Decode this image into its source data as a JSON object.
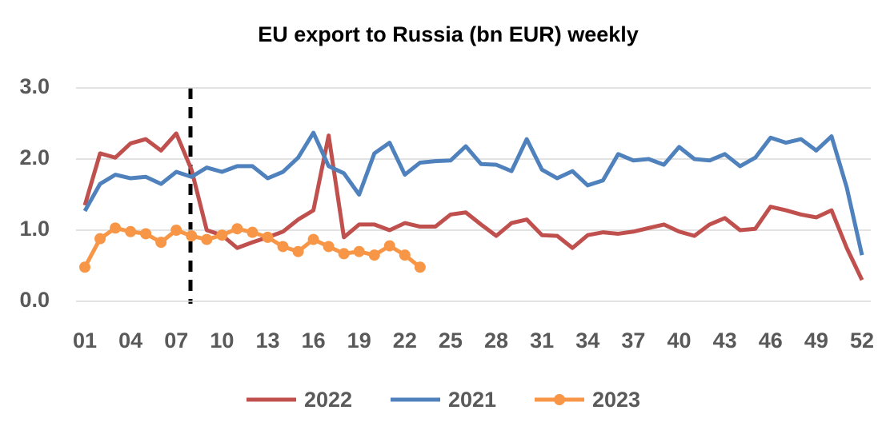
{
  "chart_data": {
    "type": "line",
    "title": "EU export to Russia (bn EUR) weekly",
    "categories": [
      "01",
      null,
      null,
      "04",
      null,
      null,
      "07",
      null,
      null,
      "10",
      null,
      null,
      "13",
      null,
      null,
      "16",
      null,
      null,
      "19",
      null,
      null,
      "22",
      null,
      null,
      "25",
      null,
      null,
      "28",
      null,
      null,
      "31",
      null,
      null,
      "34",
      null,
      null,
      "37",
      null,
      null,
      "40",
      null,
      null,
      "43",
      null,
      null,
      "46",
      null,
      null,
      "49",
      null,
      null,
      "52"
    ],
    "series": [
      {
        "name": "2022",
        "color": "#c0504d",
        "values": [
          1.35,
          2.08,
          2.02,
          2.22,
          2.28,
          2.12,
          2.36,
          1.85,
          1.0,
          0.93,
          0.75,
          0.83,
          0.9,
          0.98,
          1.15,
          1.28,
          2.33,
          0.9,
          1.08,
          1.08,
          1.0,
          1.1,
          1.05,
          1.05,
          1.22,
          1.25,
          1.08,
          0.92,
          1.1,
          1.15,
          0.93,
          0.92,
          0.75,
          0.93,
          0.97,
          0.95,
          0.98,
          1.03,
          1.08,
          0.98,
          0.92,
          1.08,
          1.17,
          1.0,
          1.02,
          1.33,
          1.28,
          1.22,
          1.18,
          1.28,
          0.75,
          0.3
        ]
      },
      {
        "name": "2021",
        "color": "#4f81bd",
        "values": [
          1.27,
          1.65,
          1.78,
          1.73,
          1.75,
          1.65,
          1.82,
          1.75,
          1.88,
          1.82,
          1.9,
          1.9,
          1.73,
          1.82,
          2.02,
          2.37,
          1.9,
          1.8,
          1.5,
          2.08,
          2.23,
          1.78,
          1.95,
          1.97,
          1.98,
          2.18,
          1.93,
          1.92,
          1.83,
          2.28,
          1.85,
          1.73,
          1.83,
          1.63,
          1.7,
          2.07,
          1.98,
          2.0,
          1.92,
          2.17,
          2.0,
          1.98,
          2.07,
          1.9,
          2.02,
          2.3,
          2.23,
          2.28,
          2.12,
          2.32,
          1.6,
          0.65
        ]
      },
      {
        "name": "2023",
        "color": "#f79646",
        "marker": "circle",
        "values": [
          0.48,
          0.88,
          1.03,
          0.98,
          0.95,
          0.83,
          1.0,
          0.92,
          0.87,
          0.93,
          1.02,
          0.97,
          0.9,
          0.77,
          0.7,
          0.87,
          0.77,
          0.67,
          0.7,
          0.65,
          0.78,
          0.65,
          0.48,
          null,
          null,
          null,
          null,
          null,
          null,
          null,
          null,
          null,
          null,
          null,
          null,
          null,
          null,
          null,
          null,
          null,
          null,
          null,
          null,
          null,
          null,
          null,
          null,
          null,
          null,
          null,
          null,
          null
        ]
      }
    ],
    "ylim": [
      0,
      3
    ],
    "yticks": [
      {
        "value": 0,
        "label": "0.0"
      },
      {
        "value": 1,
        "label": "1.0"
      },
      {
        "value": 2,
        "label": "2.0"
      },
      {
        "value": 3,
        "label": "3.0"
      }
    ],
    "grid": true,
    "legend": "bottom"
  }
}
